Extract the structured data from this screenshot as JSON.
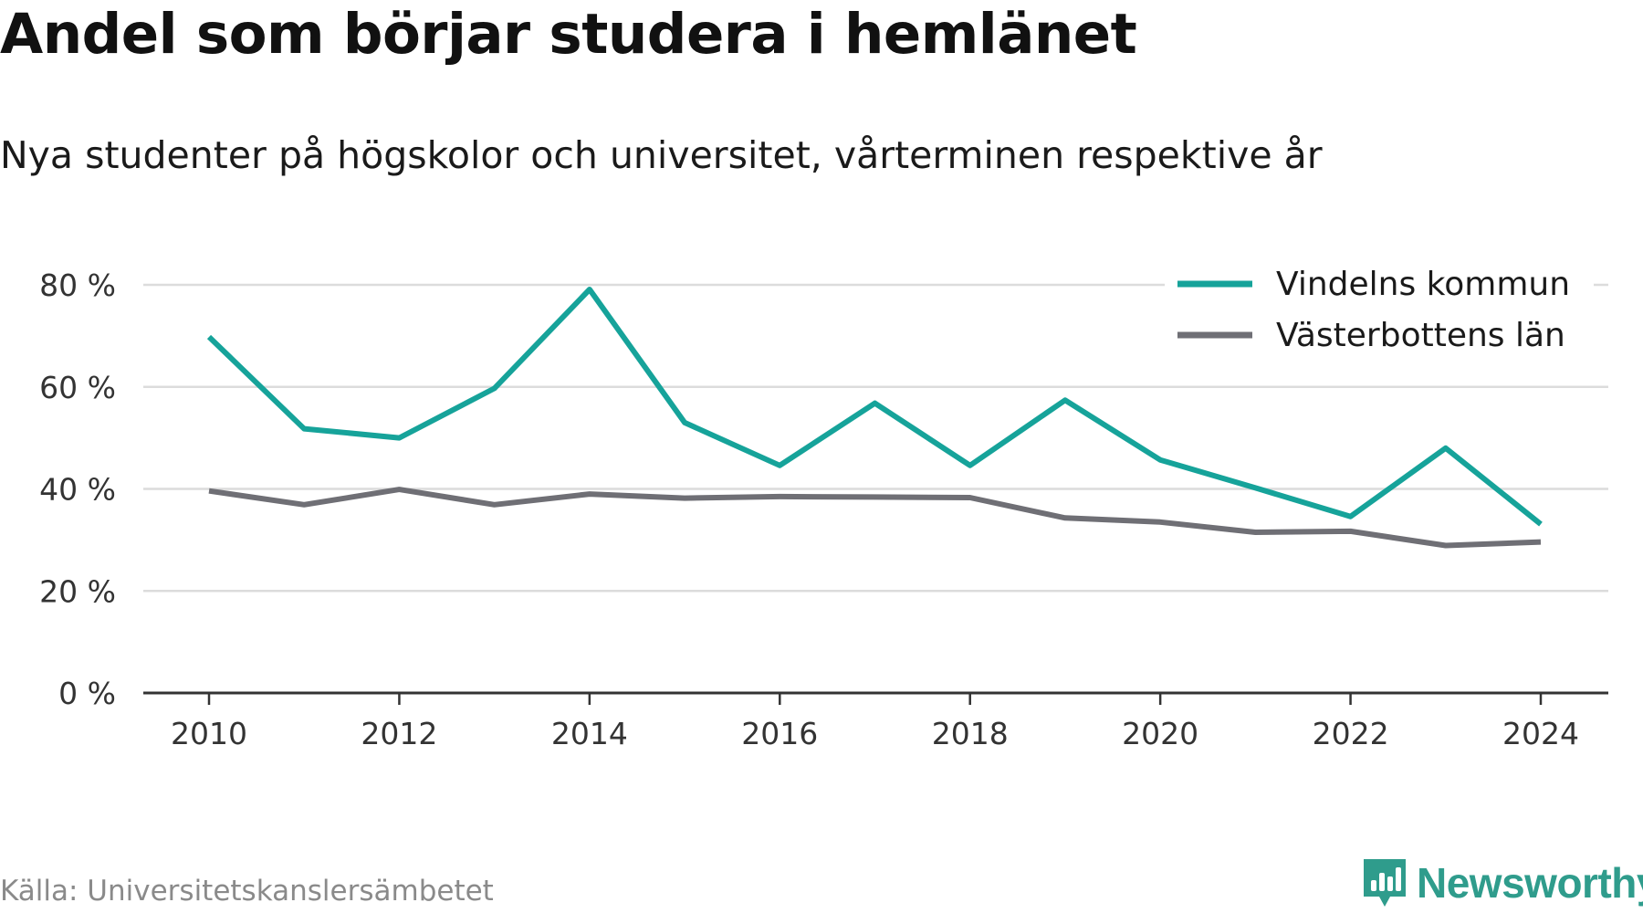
{
  "chart_data": {
    "type": "line",
    "title": "Andel som börjar studera i hemlänet",
    "subtitle": "Nya studenter på högskolor och universitet, vårterminen respektive år",
    "x": [
      2010,
      2011,
      2012,
      2013,
      2014,
      2015,
      2016,
      2017,
      2018,
      2019,
      2020,
      2021,
      2022,
      2023,
      2024
    ],
    "series": [
      {
        "name": "Vindelns kommun",
        "color": "#16a39a",
        "values": [
          69.8,
          51.8,
          50.0,
          59.7,
          79.1,
          53.0,
          44.6,
          56.8,
          44.6,
          57.4,
          45.7,
          40.2,
          34.6,
          48.0,
          33.1
        ]
      },
      {
        "name": "Västerbottens län",
        "color": "#6f6f75",
        "values": [
          39.6,
          36.9,
          39.9,
          36.9,
          39.0,
          38.2,
          38.5,
          38.4,
          38.3,
          34.3,
          33.5,
          31.5,
          31.7,
          28.9,
          29.6
        ]
      }
    ],
    "yticks": [
      0,
      20,
      40,
      60,
      80
    ],
    "ytick_labels": [
      "0 %",
      "20 %",
      "40 %",
      "60 %",
      "80 %"
    ],
    "xticks": [
      2010,
      2012,
      2014,
      2016,
      2018,
      2020,
      2022,
      2024
    ],
    "xtick_labels": [
      "2010",
      "2012",
      "2014",
      "2016",
      "2018",
      "2020",
      "2022",
      "2024"
    ],
    "ylim": [
      0,
      80
    ],
    "xlim": [
      2010,
      2024
    ],
    "xlabel": "",
    "ylabel": "",
    "grid": true,
    "legend_position": "top-right"
  },
  "footer": {
    "source": "Källa: Universitetskanslersämbetet",
    "logo_text": "Newsworthy"
  },
  "colors": {
    "brand": "#2f9c8c",
    "grid": "#dcdcdc",
    "axis": "#333333"
  },
  "icons": {
    "logo": "newsworthy-logo-icon"
  }
}
